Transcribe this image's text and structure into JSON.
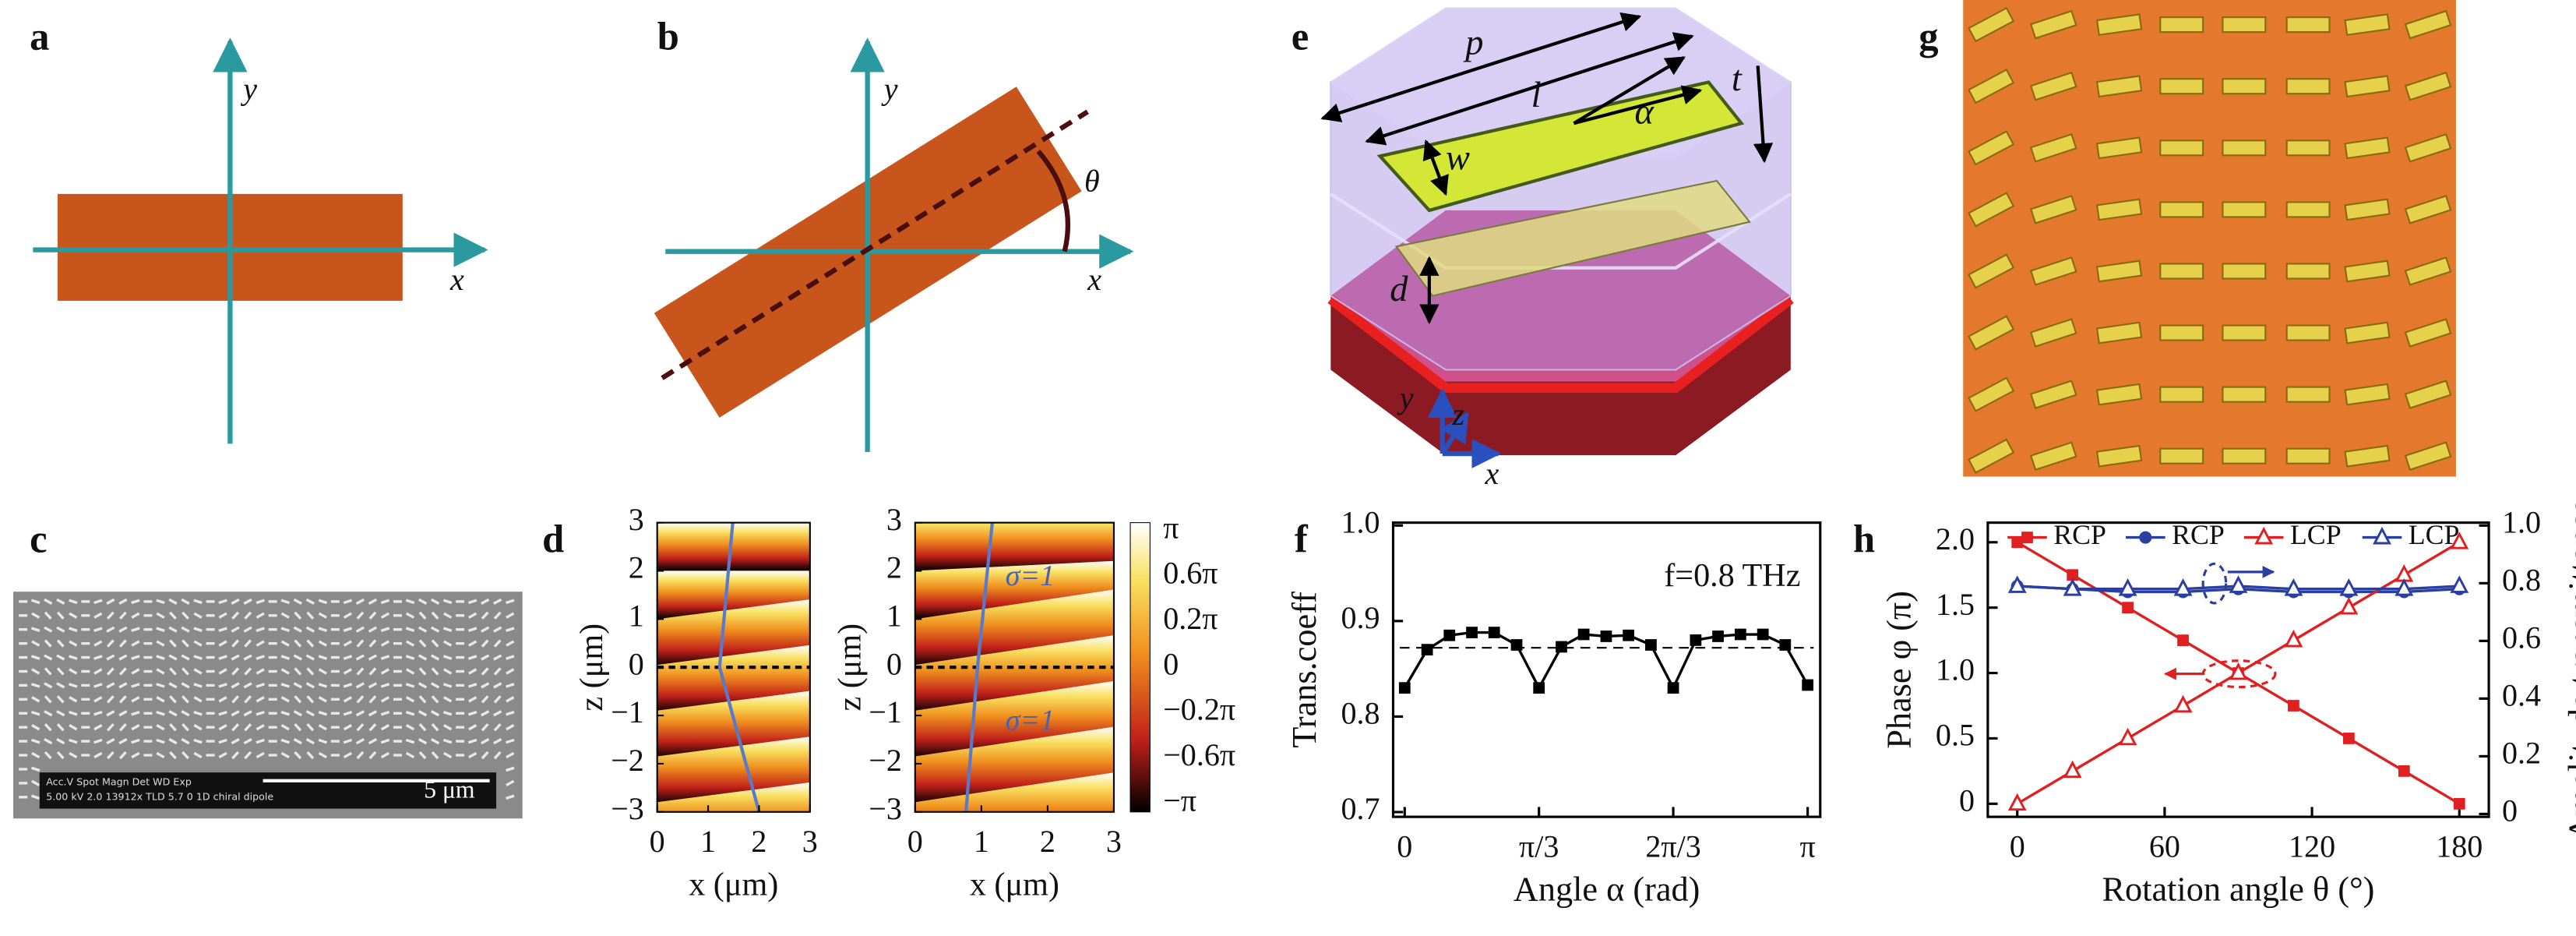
{
  "panels": {
    "a": {
      "label": "a",
      "x_axis": "x",
      "y_axis": "y"
    },
    "b": {
      "label": "b",
      "x_axis": "x",
      "y_axis": "y",
      "angle": "θ"
    },
    "c": {
      "label": "c",
      "scale_bar": "5 μm",
      "info_header": "Acc.V  Spot  Magn   Det  WD  Exp",
      "info_values": "5.00 kV 2.0  13912x  TLD  5.7  0      1D chiral dipole"
    },
    "d": {
      "label": "d",
      "xlabel": "x (μm)",
      "ylabel": "z (μm)",
      "xticks": [
        "0",
        "1",
        "2",
        "3"
      ],
      "zticks": [
        "3",
        "2",
        "1",
        "0",
        "−1",
        "−2",
        "−3"
      ],
      "colorbar": [
        "π",
        "0.6π",
        "0.2π",
        "0",
        "−0.2π",
        "−0.6π",
        "−π"
      ],
      "annotations": [
        "σ=1",
        "σ=1"
      ]
    },
    "e": {
      "label": "e",
      "period": "p",
      "length": "l",
      "angle": "α",
      "thickness": "t",
      "width": "w",
      "spacing": "d",
      "axes": [
        "y",
        "z",
        "x"
      ]
    },
    "g": {
      "label": "g"
    }
  },
  "chart_data": [
    {
      "type": "line",
      "label": "f",
      "xlabel": "Angle α (rad)",
      "ylabel": "Trans.coeff",
      "annotation": "f=0.8 THz",
      "x": [
        0,
        0.175,
        0.349,
        0.524,
        0.698,
        0.873,
        1.047,
        1.222,
        1.396,
        1.571,
        1.745,
        1.92,
        2.094,
        2.269,
        2.443,
        2.618,
        2.793,
        2.967,
        3.142
      ],
      "values": [
        0.83,
        0.87,
        0.885,
        0.888,
        0.888,
        0.875,
        0.83,
        0.873,
        0.886,
        0.884,
        0.885,
        0.875,
        0.83,
        0.88,
        0.884,
        0.886,
        0.886,
        0.875,
        0.833
      ],
      "color": "#000000",
      "marker": "square",
      "reference_line": 0.872,
      "xlim": [
        -0.09,
        3.24
      ],
      "ylim": [
        0.695,
        1.003
      ],
      "xticks": [
        0,
        {
          "value": 1.047,
          "label": "π/3"
        },
        {
          "value": 2.094,
          "label": "2π/3"
        },
        {
          "value": 3.142,
          "label": "π"
        }
      ],
      "yticks": [
        0.7,
        0.8,
        0.9,
        {
          "value": 1,
          "label": "1.0"
        }
      ]
    },
    {
      "type": "line",
      "label": "h",
      "xlabel": "Rotation angle θ (°)",
      "ylabel": "Phase φ (π)",
      "y2label": "Amplitude transmittance",
      "legend": "top",
      "x": [
        0,
        22.5,
        45,
        67.5,
        90,
        112.5,
        135,
        157.5,
        180
      ],
      "series": [
        {
          "name": "RCP",
          "color": "#e02020",
          "marker": "square",
          "values": [
            2,
            1.75,
            1.5,
            1.25,
            1,
            0.75,
            0.5,
            0.25,
            0
          ]
        },
        {
          "name": "RCP",
          "color": "#2a3fa0",
          "marker": "circle",
          "axis": "y2",
          "values": [
            0.79,
            0.78,
            0.77,
            0.77,
            0.78,
            0.77,
            0.77,
            0.77,
            0.78
          ]
        },
        {
          "name": "LCP",
          "color": "#e02020",
          "marker": "triangle-open",
          "values": [
            0,
            0.25,
            0.5,
            0.75,
            1,
            1.25,
            1.5,
            1.75,
            2
          ]
        },
        {
          "name": "LCP",
          "color": "#2a3fa0",
          "marker": "triangle-open",
          "axis": "y2",
          "values": [
            0.79,
            0.78,
            0.78,
            0.78,
            0.79,
            0.78,
            0.78,
            0.78,
            0.79
          ]
        }
      ],
      "xlim": [
        -12,
        192
      ],
      "ylim": [
        -0.1,
        2.15
      ],
      "y2lim": [
        -0.01,
        1.01
      ],
      "xticks": [
        0,
        60,
        120,
        180
      ],
      "yticks": [
        0,
        0.5,
        {
          "value": 1,
          "label": "1.0"
        },
        1.5,
        {
          "value": 2,
          "label": "2.0"
        }
      ],
      "y2ticks": [
        0,
        0.2,
        0.4,
        0.6,
        0.8,
        {
          "value": 1,
          "label": "1.0"
        }
      ]
    }
  ]
}
